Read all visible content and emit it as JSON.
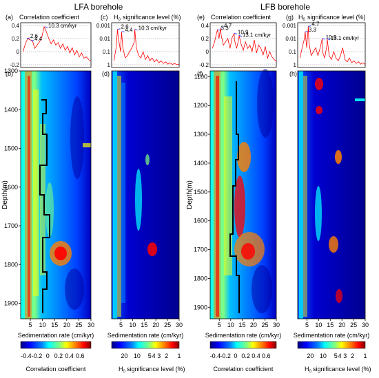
{
  "titles": {
    "left": "LFA borehole",
    "right": "LFB borehole"
  },
  "panel_titles": {
    "a": "Correlation coefficient",
    "c": "significance level (%)",
    "e": "Correlation coefficient",
    "g": "significance level (%)",
    "h_symbol": "H",
    "h_subscript": "0"
  },
  "panel_letters": [
    "(a)",
    "(b)",
    "(c)",
    "(d)",
    "(e)",
    "(f)",
    "(g)",
    "(h)"
  ],
  "axis_labels": {
    "depth": "Depth(m)",
    "sedrate": "Sedimentation rate (cm/kyr)",
    "cbar_corr": "Correlation coefficient",
    "cbar_sig": "significance level (%)"
  },
  "colormap": [
    "#00007f",
    "#0000ff",
    "#0080ff",
    "#00ffff",
    "#80ff80",
    "#ffff00",
    "#ff8000",
    "#ff0000",
    "#7f0000"
  ],
  "colorbars": {
    "corr_ticks": [
      "-0.4",
      "-0.2",
      "0",
      "0.2",
      "0.4",
      "0.6"
    ],
    "sig_ticks": [
      "20",
      "10",
      "5",
      "4",
      "3",
      "2",
      "1"
    ]
  },
  "chart_data": [
    {
      "panel": "a",
      "type": "line",
      "xlim": [
        0,
        30
      ],
      "ylim": [
        -0.2,
        0.4
      ],
      "yticks": [
        "0.4",
        "0.2",
        "0",
        "-0.2"
      ],
      "x": [
        1,
        2,
        3,
        4,
        5,
        6,
        7,
        8,
        9,
        10,
        11,
        12,
        13,
        14,
        15,
        16,
        17,
        18,
        19,
        20,
        21,
        22,
        23,
        24,
        25,
        26,
        27,
        28,
        29,
        30
      ],
      "y": [
        0.0,
        0.12,
        0.2,
        0.18,
        0.17,
        0.05,
        0.1,
        0.15,
        0.22,
        0.38,
        0.3,
        0.2,
        0.12,
        0.18,
        0.1,
        0.14,
        0.05,
        0.12,
        0.02,
        0.08,
        -0.02,
        0.06,
        -0.05,
        0.02,
        -0.08,
        -0.02,
        -0.1,
        -0.08,
        -0.12,
        -0.15
      ],
      "annotations": [
        {
          "text": "2.6",
          "x": 2.6,
          "y": 0.2
        },
        {
          "text": "4.4",
          "x": 4.4,
          "y": 0.17
        },
        {
          "text": "10.3 cm/kyr",
          "x": 10.3,
          "y": 0.38
        }
      ]
    },
    {
      "panel": "b",
      "type": "heatmap",
      "ylim": [
        1300,
        1940
      ],
      "xlim": [
        1,
        30
      ],
      "yticks": [
        "1300",
        "1400",
        "1500",
        "1600",
        "1700",
        "1800",
        "1900"
      ],
      "xticks": [
        "5",
        "10",
        "15",
        "20",
        "25",
        "30"
      ]
    },
    {
      "panel": "c",
      "type": "line",
      "xlim": [
        0,
        30
      ],
      "ylim": [
        0.001,
        1
      ],
      "yscale": "log",
      "yticks": [
        "0.001",
        "0.01",
        "0.1",
        "1"
      ],
      "x": [
        1,
        2,
        2.6,
        3,
        4,
        4.4,
        5,
        6,
        7,
        8,
        9,
        10,
        10.3,
        11,
        12,
        13,
        14,
        15,
        16,
        17,
        18,
        19,
        20,
        21,
        22,
        23,
        24,
        25,
        26,
        27,
        28,
        29,
        30
      ],
      "y": [
        0.5,
        0.05,
        0.002,
        0.01,
        0.1,
        0.003,
        0.05,
        0.3,
        0.2,
        0.1,
        0.05,
        0.02,
        0.002,
        0.05,
        0.2,
        0.3,
        0.1,
        0.4,
        0.2,
        0.5,
        0.3,
        0.6,
        0.4,
        0.7,
        0.5,
        0.8,
        0.6,
        0.9,
        0.7,
        0.95,
        0.8,
        1,
        0.9
      ],
      "annotations": [
        {
          "text": "2.6",
          "x": 2.6,
          "y": 0.002
        },
        {
          "text": "4.4",
          "x": 4.4,
          "y": 0.003
        },
        {
          "text": "10.3 cm/kyr",
          "x": 10.3,
          "y": 0.002
        }
      ]
    },
    {
      "panel": "d",
      "type": "heatmap",
      "ylim": [
        1300,
        1940
      ],
      "xlim": [
        1,
        30
      ],
      "xticks": [
        "5",
        "10",
        "15",
        "20",
        "25",
        "30"
      ]
    },
    {
      "panel": "e",
      "type": "line",
      "xlim": [
        0,
        30
      ],
      "ylim": [
        -0.2,
        0.4
      ],
      "yticks": [
        "0.4",
        "0.2",
        "0",
        "-0.2"
      ],
      "x": [
        1,
        2,
        3,
        3.3,
        4,
        4.7,
        5,
        6,
        7,
        8,
        9,
        10,
        10.9,
        11,
        12,
        13,
        13.1,
        14,
        15,
        16,
        17,
        18,
        19,
        20,
        21,
        22,
        23,
        24,
        25,
        26,
        27,
        28,
        29,
        30
      ],
      "y": [
        0.05,
        0.15,
        0.3,
        0.33,
        0.2,
        0.36,
        0.25,
        0.1,
        0.15,
        0.2,
        0.05,
        0.22,
        0.28,
        0.18,
        0.05,
        0.2,
        0.25,
        0.12,
        0.02,
        0.15,
        0.05,
        0.1,
        0.0,
        0.18,
        -0.02,
        0.1,
        0.05,
        -0.05,
        0.08,
        -0.1,
        0.0,
        -0.08,
        -0.12,
        -0.15
      ],
      "annotations": [
        {
          "text": "4.7",
          "x": 4.7,
          "y": 0.36
        },
        {
          "text": "3.3",
          "x": 3.3,
          "y": 0.33
        },
        {
          "text": "10.9",
          "x": 10.9,
          "y": 0.28
        },
        {
          "text": "13.1 cm/kyr",
          "x": 13.1,
          "y": 0.25
        }
      ]
    },
    {
      "panel": "f",
      "type": "heatmap",
      "ylim": [
        1080,
        1940
      ],
      "xlim": [
        1,
        30
      ],
      "yticks": [
        "1100",
        "1200",
        "1300",
        "1400",
        "1500",
        "1600",
        "1700",
        "1800",
        "1900"
      ],
      "xticks": [
        "5",
        "10",
        "15",
        "20",
        "25",
        "30"
      ]
    },
    {
      "panel": "g",
      "type": "line",
      "xlim": [
        0,
        30
      ],
      "ylim": [
        0.001,
        1
      ],
      "yscale": "log",
      "yticks": [
        "0.001",
        "0.01",
        "0.1",
        "1"
      ],
      "x": [
        1,
        2,
        3,
        3.3,
        4,
        4.7,
        5,
        6,
        7,
        8,
        9,
        10,
        10.9,
        11,
        12,
        13,
        13.1,
        14,
        15,
        16,
        17,
        18,
        19,
        20,
        21,
        22,
        23,
        24,
        25,
        26,
        27,
        28,
        29,
        30
      ],
      "y": [
        0.3,
        0.05,
        0.01,
        0.003,
        0.05,
        0.0012,
        0.02,
        0.2,
        0.1,
        0.05,
        0.2,
        0.05,
        0.01,
        0.1,
        0.3,
        0.03,
        0.01,
        0.2,
        0.4,
        0.1,
        0.3,
        0.5,
        0.2,
        0.05,
        0.4,
        0.6,
        0.3,
        0.7,
        0.5,
        0.8,
        0.6,
        0.9,
        0.7,
        0.95
      ],
      "annotations": [
        {
          "text": "4.7",
          "x": 4.7,
          "y": 0.0012
        },
        {
          "text": "3.3",
          "x": 3.3,
          "y": 0.003
        },
        {
          "text": "10.9",
          "x": 10.9,
          "y": 0.01
        },
        {
          "text": "13.1 cm/kyr",
          "x": 13.1,
          "y": 0.01
        }
      ]
    },
    {
      "panel": "h",
      "type": "heatmap",
      "ylim": [
        1080,
        1940
      ],
      "xlim": [
        1,
        30
      ],
      "xticks": [
        "5",
        "10",
        "15",
        "20",
        "25",
        "30"
      ]
    }
  ]
}
